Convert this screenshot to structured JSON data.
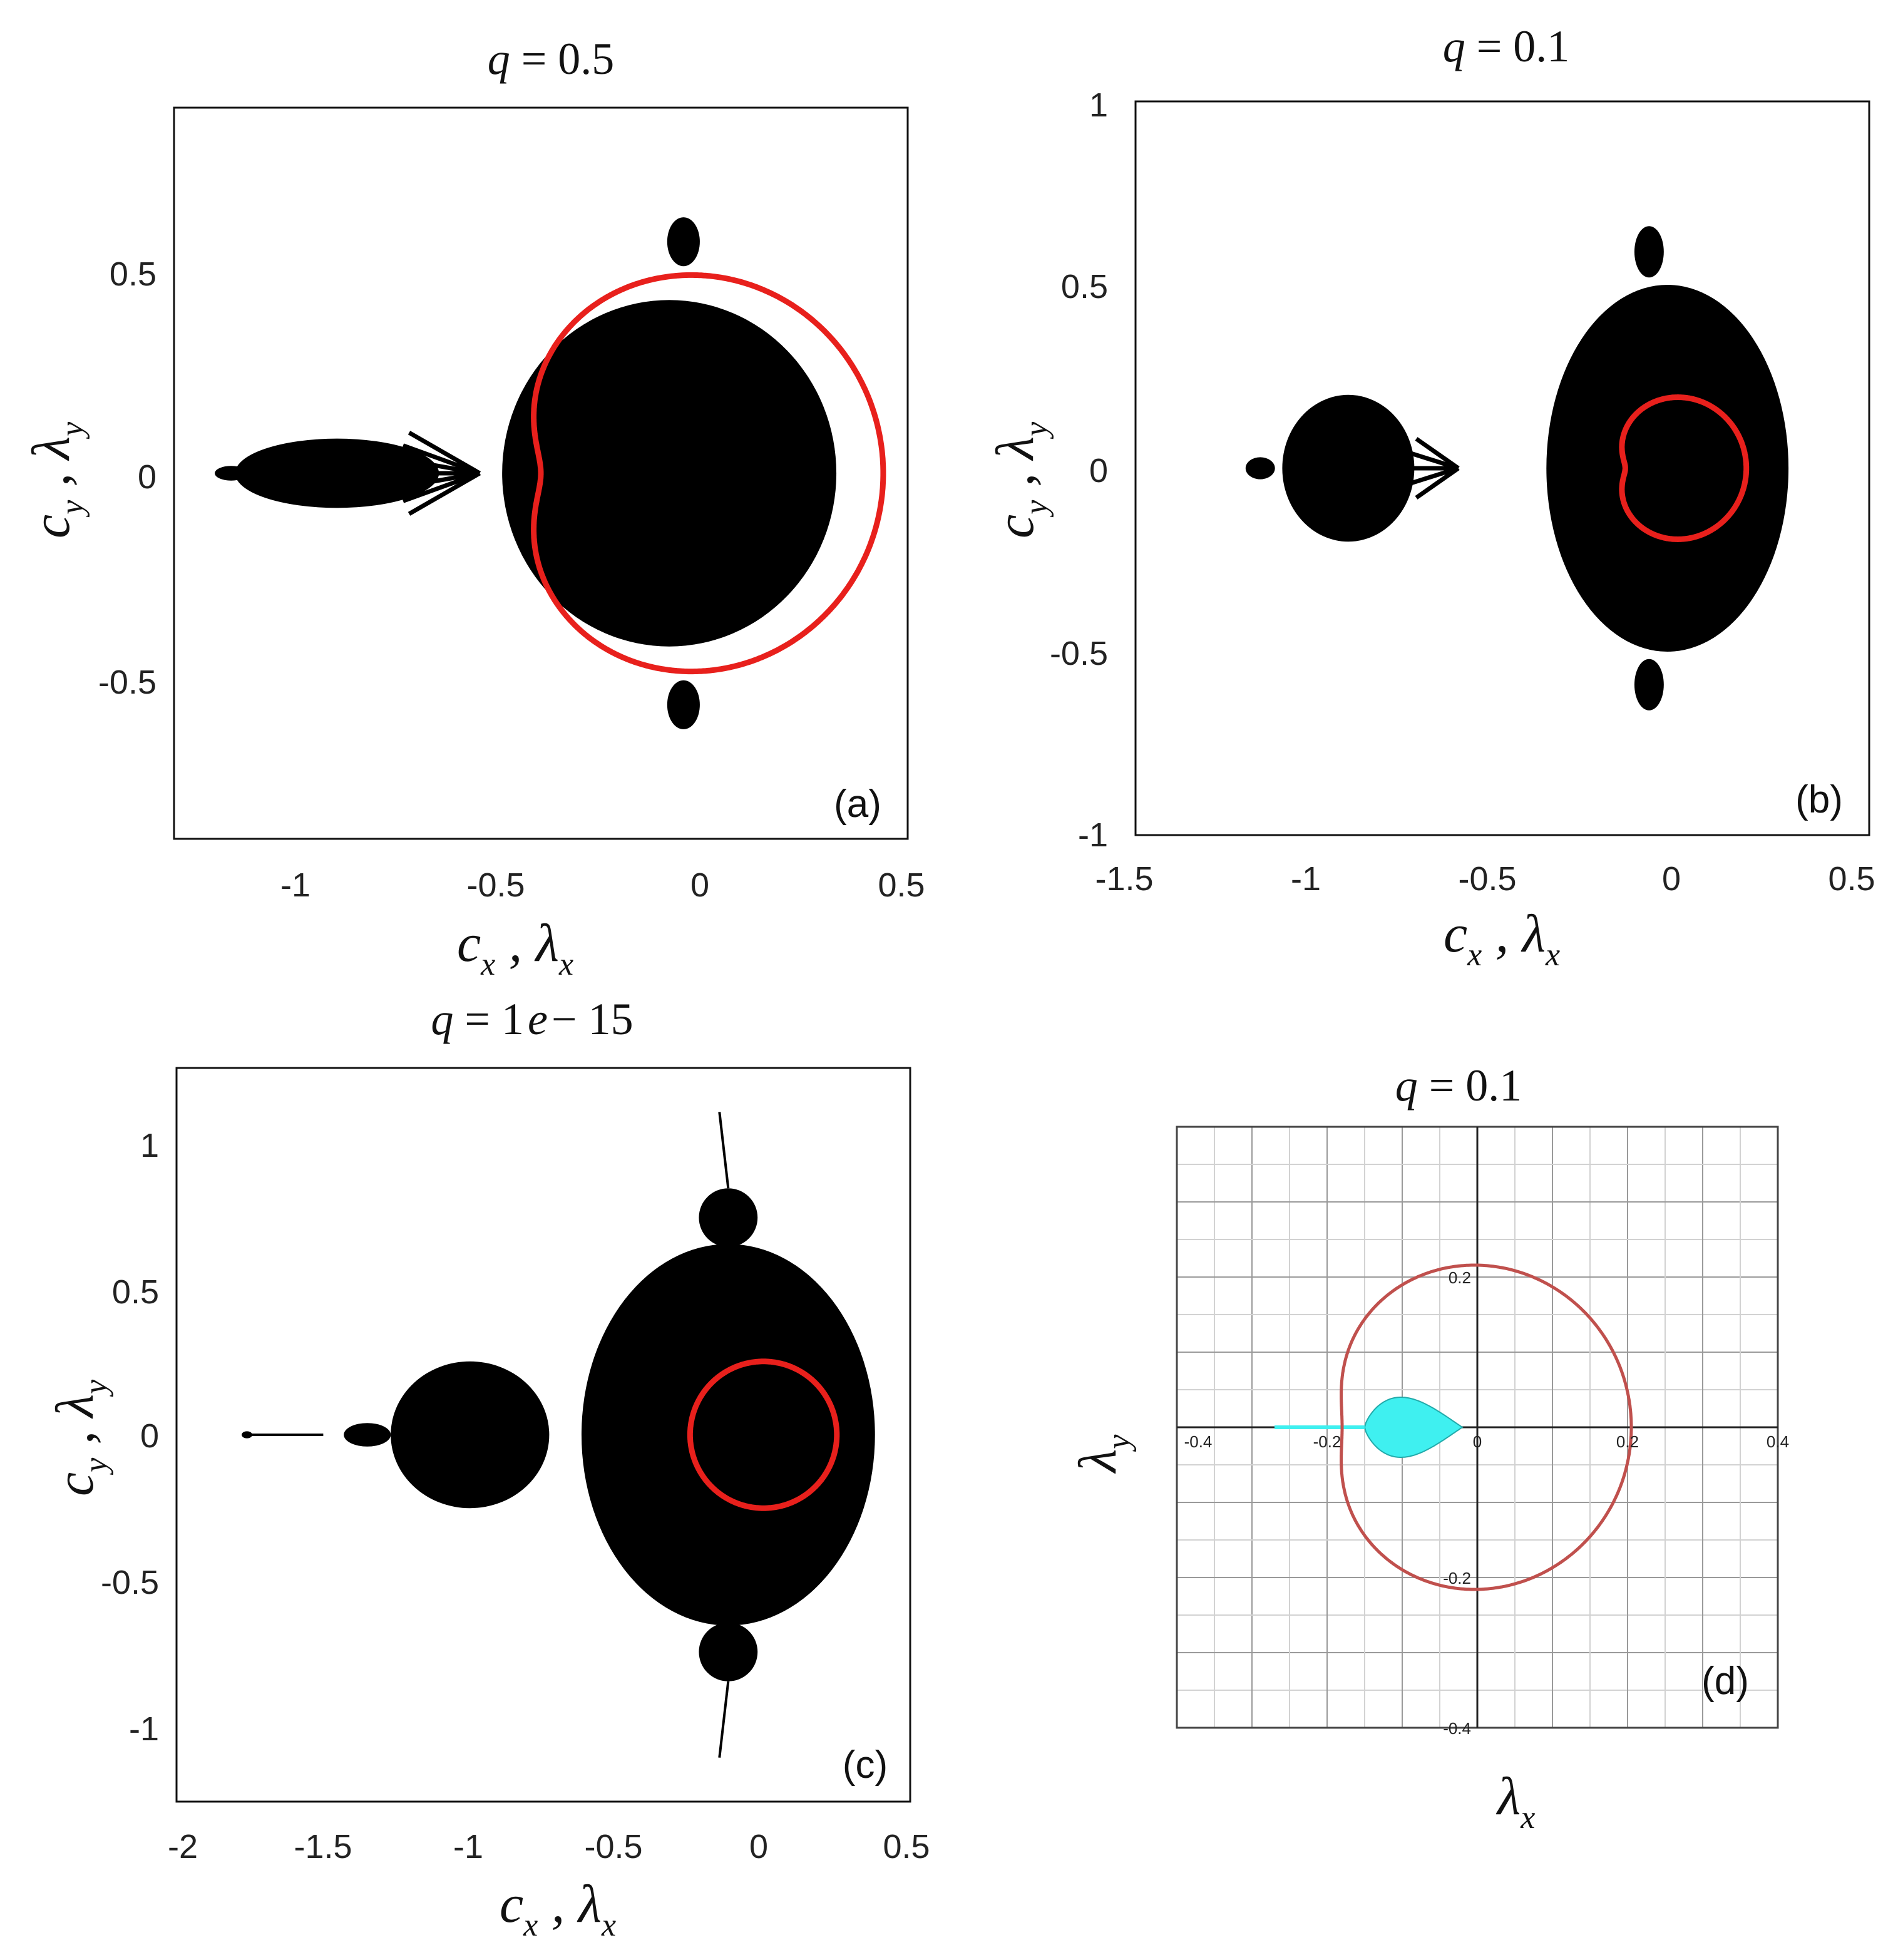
{
  "chart_data": [
    {
      "panel": "(a)",
      "type": "scatter",
      "title": "q = 0.5",
      "xlabel": "c_x , λ_x",
      "ylabel": "c_y , λ_y",
      "xlim": [
        -1.3,
        0.5
      ],
      "ylim": [
        -0.9,
        0.9
      ],
      "xticks": [
        "-1",
        "-0.5",
        "0",
        "0.5"
      ],
      "yticks": [
        "0.5",
        "0",
        "-0.5"
      ],
      "curve": {
        "color": "#e8201c",
        "family": "limacon",
        "R": 0.42,
        "d": 0.28,
        "center": [
          0.02,
          0
        ]
      },
      "set_color": "#000000"
    },
    {
      "panel": "(b)",
      "type": "scatter",
      "title": "q = 0.1",
      "xlabel": "c_x , λ_x",
      "ylabel": "c_y , λ_y",
      "xlim": [
        -1.5,
        0.5
      ],
      "ylim": [
        -1,
        1
      ],
      "xticks": [
        "-1.5",
        "-1",
        "-0.5",
        "0",
        "0.5"
      ],
      "yticks": [
        "1",
        "0.5",
        "0",
        "-0.5",
        "-1"
      ],
      "curve": {
        "color": "#e8201c",
        "family": "limacon",
        "R": 0.165,
        "d": 0.115,
        "center": [
          0.0,
          0
        ]
      },
      "set_color": "#000000"
    },
    {
      "panel": "(c)",
      "type": "scatter",
      "title": "q = 1e − 15",
      "xlabel": "c_x , λ_x",
      "ylabel": "c_y , λ_y",
      "xlim": [
        -2,
        0.5
      ],
      "ylim": [
        -1.25,
        1.25
      ],
      "xticks": [
        "-2",
        "-1.5",
        "-1",
        "-0.5",
        "0",
        "0.5"
      ],
      "yticks": [
        "1",
        "0.5",
        "0",
        "-0.5",
        "-1"
      ],
      "curve": {
        "color": "#e8201c",
        "family": "circle",
        "center": [
          0,
          0
        ],
        "r": 0.25
      },
      "set_color": "#000000"
    },
    {
      "panel": "(d)",
      "type": "line",
      "title": "q = 0.1",
      "xlabel": "λ_x",
      "ylabel": "λ_y",
      "xlim": [
        -0.4,
        0.4
      ],
      "ylim": [
        -0.4,
        0.4
      ],
      "xticks": [
        "-0.4",
        "-0.2",
        "0",
        "0.2",
        "0.4"
      ],
      "yticks": [
        "0.2",
        "-0.2",
        "-0.4"
      ],
      "grid": true,
      "curve": {
        "color": "#c0504d",
        "family": "limacon",
        "R": 0.1925,
        "d": 0.1075,
        "center": [
          0.0125,
          0
        ]
      },
      "fill": {
        "color": "#3ff0f0",
        "x_from": -0.15,
        "x_to": -0.02,
        "max_half_height": 0.04
      }
    }
  ]
}
